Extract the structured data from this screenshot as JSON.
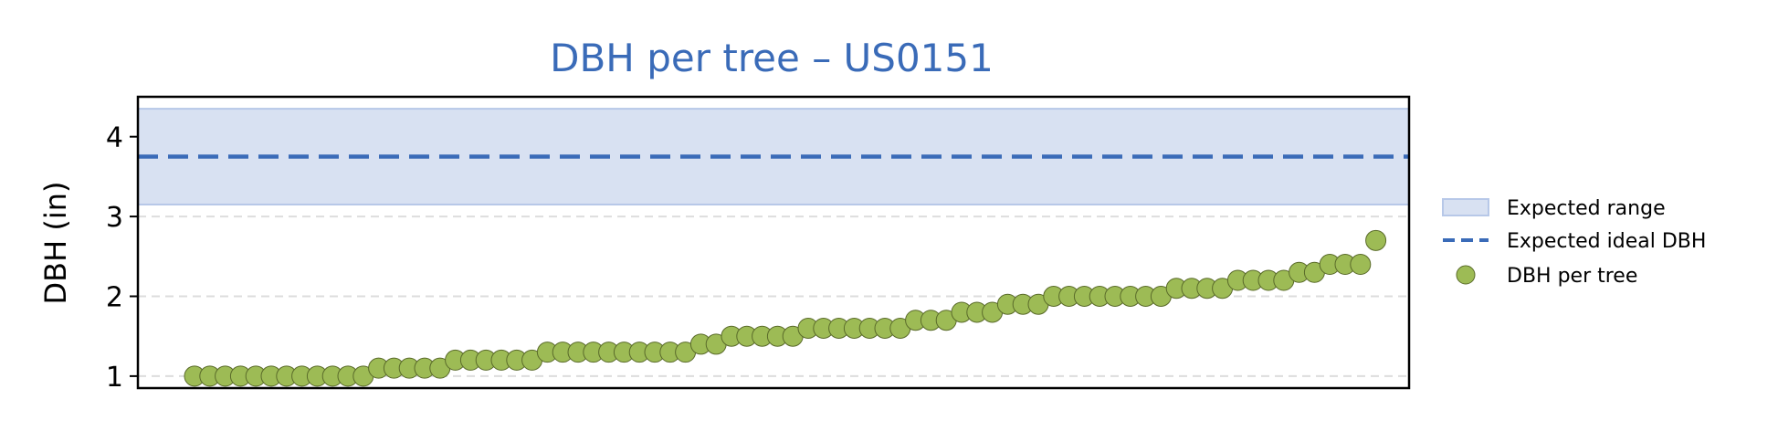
{
  "chart_data": {
    "type": "scatter",
    "title": "DBH per tree – US0151",
    "ylabel": "DBH (in)",
    "xlabel": "",
    "ylim": [
      0.85,
      4.5
    ],
    "yticks": [
      1,
      2,
      3,
      4
    ],
    "grid": "horizontal-dashed",
    "legend_position": "right",
    "expected_range": {
      "name": "Expected range",
      "low": 3.15,
      "high": 4.35,
      "color": "#d8e1f2",
      "edge_color": "#b7c8e8"
    },
    "expected_ideal": {
      "name": "Expected ideal DBH",
      "value": 3.75,
      "color": "#3a6bb8"
    },
    "series": [
      {
        "name": "DBH per tree",
        "color": "#9dbb55",
        "edge_color": "#5a6b2a",
        "y": [
          1.0,
          1.0,
          1.0,
          1.0,
          1.0,
          1.0,
          1.0,
          1.0,
          1.0,
          1.0,
          1.0,
          1.0,
          1.1,
          1.1,
          1.1,
          1.1,
          1.1,
          1.2,
          1.2,
          1.2,
          1.2,
          1.2,
          1.2,
          1.3,
          1.3,
          1.3,
          1.3,
          1.3,
          1.3,
          1.3,
          1.3,
          1.3,
          1.3,
          1.4,
          1.4,
          1.5,
          1.5,
          1.5,
          1.5,
          1.5,
          1.6,
          1.6,
          1.6,
          1.6,
          1.6,
          1.6,
          1.6,
          1.7,
          1.7,
          1.7,
          1.8,
          1.8,
          1.8,
          1.9,
          1.9,
          1.9,
          2.0,
          2.0,
          2.0,
          2.0,
          2.0,
          2.0,
          2.0,
          2.0,
          2.1,
          2.1,
          2.1,
          2.1,
          2.2,
          2.2,
          2.2,
          2.2,
          2.3,
          2.3,
          2.4,
          2.4,
          2.4,
          2.7
        ]
      }
    ]
  }
}
